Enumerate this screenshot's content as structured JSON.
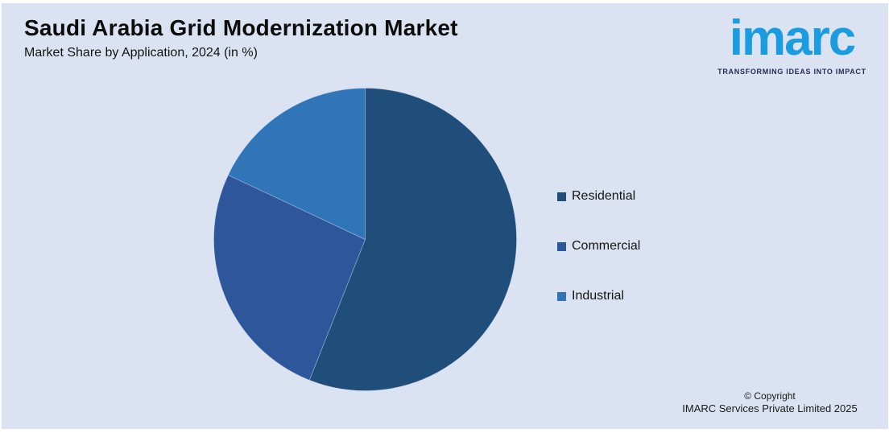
{
  "header": {
    "title": "Saudi Arabia Grid Modernization Market",
    "subtitle": "Market Share by Application, 2024 (in %)"
  },
  "logo": {
    "brand": "imarc",
    "tagline": "TRANSFORMING IDEAS INTO IMPACT",
    "brand_color": "#1a9ce1",
    "tagline_color": "#272e52"
  },
  "chart_data": {
    "type": "pie",
    "title": "Saudi Arabia Grid Modernization Market",
    "subtitle": "Market Share by Application, 2024 (in %)",
    "categories": [
      "Residential",
      "Commercial",
      "Industrial"
    ],
    "values": [
      56,
      26,
      18
    ],
    "unit": "%",
    "colors": [
      "#1f4e7b",
      "#2e569b",
      "#2f75b8"
    ],
    "start_angle_deg": 0,
    "direction": "clockwise",
    "legend_position": "right",
    "data_labels_shown": false
  },
  "legend": {
    "items": [
      {
        "label": "Residential",
        "color": "#1f4e7b"
      },
      {
        "label": "Commercial",
        "color": "#2e569b"
      },
      {
        "label": "Industrial",
        "color": "#2f75b8"
      }
    ]
  },
  "footer": {
    "copyright_line1": "© Copyright",
    "copyright_line2": "IMARC Services Private Limited 2025"
  },
  "colors": {
    "panel_background": "#dbe2f1",
    "frame": "#ffffff",
    "text": "#0d0d0d"
  }
}
